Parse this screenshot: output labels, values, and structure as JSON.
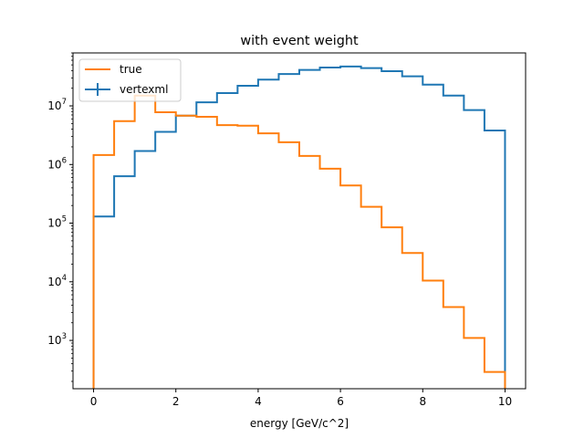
{
  "chart_data": {
    "type": "step-histogram",
    "title": "with event weight",
    "xlabel": "energy [GeV/c^2]",
    "ylabel": "",
    "xlim": [
      -0.5,
      10.5
    ],
    "ylim": [
      150,
      80000000
    ],
    "yscale": "log",
    "grid": false,
    "legend_position": "top-left",
    "bin_edges": [
      0,
      0.5,
      1,
      1.5,
      2,
      2.5,
      3,
      3.5,
      4,
      4.5,
      5,
      5.5,
      6,
      6.5,
      7,
      7.5,
      8,
      8.5,
      9,
      9.5,
      10
    ],
    "x_ticks": [
      0,
      2,
      4,
      6,
      8,
      10
    ],
    "y_ticks": [
      {
        "value": 1000,
        "mantissa": "10",
        "exp": "3"
      },
      {
        "value": 10000,
        "mantissa": "10",
        "exp": "4"
      },
      {
        "value": 100000,
        "mantissa": "10",
        "exp": "5"
      },
      {
        "value": 1000000,
        "mantissa": "10",
        "exp": "6"
      },
      {
        "value": 10000000,
        "mantissa": "10",
        "exp": "7"
      }
    ],
    "series": [
      {
        "name": "true",
        "color": "#ff7f0e",
        "legend_marker": "line",
        "values": [
          1450000,
          5500000,
          15000000,
          7800000,
          6800000,
          6500000,
          4700000,
          4600000,
          3400000,
          2400000,
          1400000,
          850000,
          440000,
          190000,
          85000,
          31000,
          10500,
          3700,
          1100,
          290
        ]
      },
      {
        "name": "vertexml",
        "color": "#1f77b4",
        "legend_marker": "errorbar",
        "values": [
          130000,
          630000,
          1700000,
          3600000,
          6800000,
          11500000,
          16500000,
          22000000,
          28000000,
          35000000,
          41000000,
          45000000,
          47000000,
          44000000,
          39000000,
          32000000,
          23000000,
          15000000,
          8500000,
          3800000
        ]
      }
    ]
  }
}
